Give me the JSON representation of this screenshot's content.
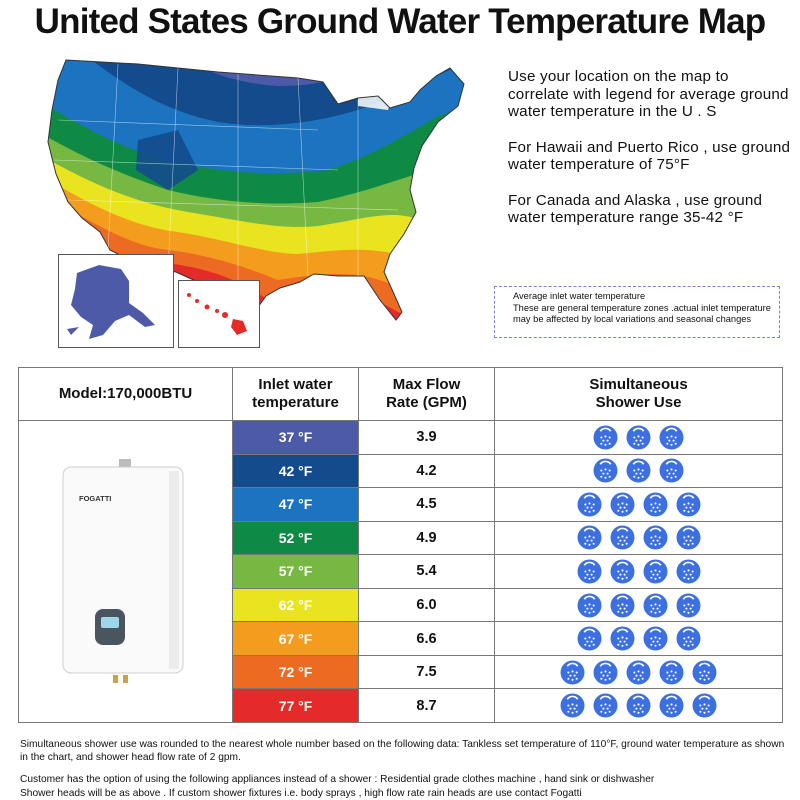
{
  "title": "United States Ground Water Temperature Map",
  "notes": [
    "Use your location on the map to correlate with legend for average ground water temperature in the U . S",
    "For Hawaii and Puerto Rico , use ground water temperature of 75°F",
    "For Canada and Alaska , use ground water temperature range 35-42 °F"
  ],
  "legend_box": {
    "title": "Average inlet water temperature",
    "text": "These are general temperature zones .actual inlet temperature may be affected by local variations and seasonal changes"
  },
  "table": {
    "headers": [
      "Model:170,000BTU",
      "Inlet water temperature",
      "Max Flow Rate (GPM)",
      "Simultaneous Shower Use"
    ],
    "product_brand": "FOGATTI",
    "rows": [
      {
        "temp": "37 °F",
        "flow": "3.9",
        "showers": 3,
        "color": "#4d5aa8"
      },
      {
        "temp": "42 °F",
        "flow": "4.2",
        "showers": 3,
        "color": "#134b8c"
      },
      {
        "temp": "47 °F",
        "flow": "4.5",
        "showers": 4,
        "color": "#1c74c1"
      },
      {
        "temp": "52 °F",
        "flow": "4.9",
        "showers": 4,
        "color": "#0f8a44"
      },
      {
        "temp": "57 °F",
        "flow": "5.4",
        "showers": 4,
        "color": "#77b843"
      },
      {
        "temp": "62 °F",
        "flow": "6.0",
        "showers": 4,
        "color": "#eae31f"
      },
      {
        "temp": "67 °F",
        "flow": "6.6",
        "showers": 4,
        "color": "#f39c1d"
      },
      {
        "temp": "72 °F",
        "flow": "7.5",
        "showers": 5,
        "color": "#ed6a22"
      },
      {
        "temp": "77 °F",
        "flow": "8.7",
        "showers": 5,
        "color": "#e52b2a"
      }
    ]
  },
  "footnotes": [
    "Simultaneous shower use was rounded to the nearest whole number based on the following data: Tankless set temperature of 110°F, ground water temperature as shown in the chart, and shower head flow rate of 2 gpm.",
    "Customer has the option of using the following appliances instead of a shower : Residential grade clothes machine , hand sink or dishwasher",
    "Shower heads will be as above . If custom shower fixtures i.e. body sprays , high flow rate rain heads are use contact Fogatti"
  ],
  "shower_icon": "shower-head-icon",
  "icon_color": "#3c6fe0"
}
